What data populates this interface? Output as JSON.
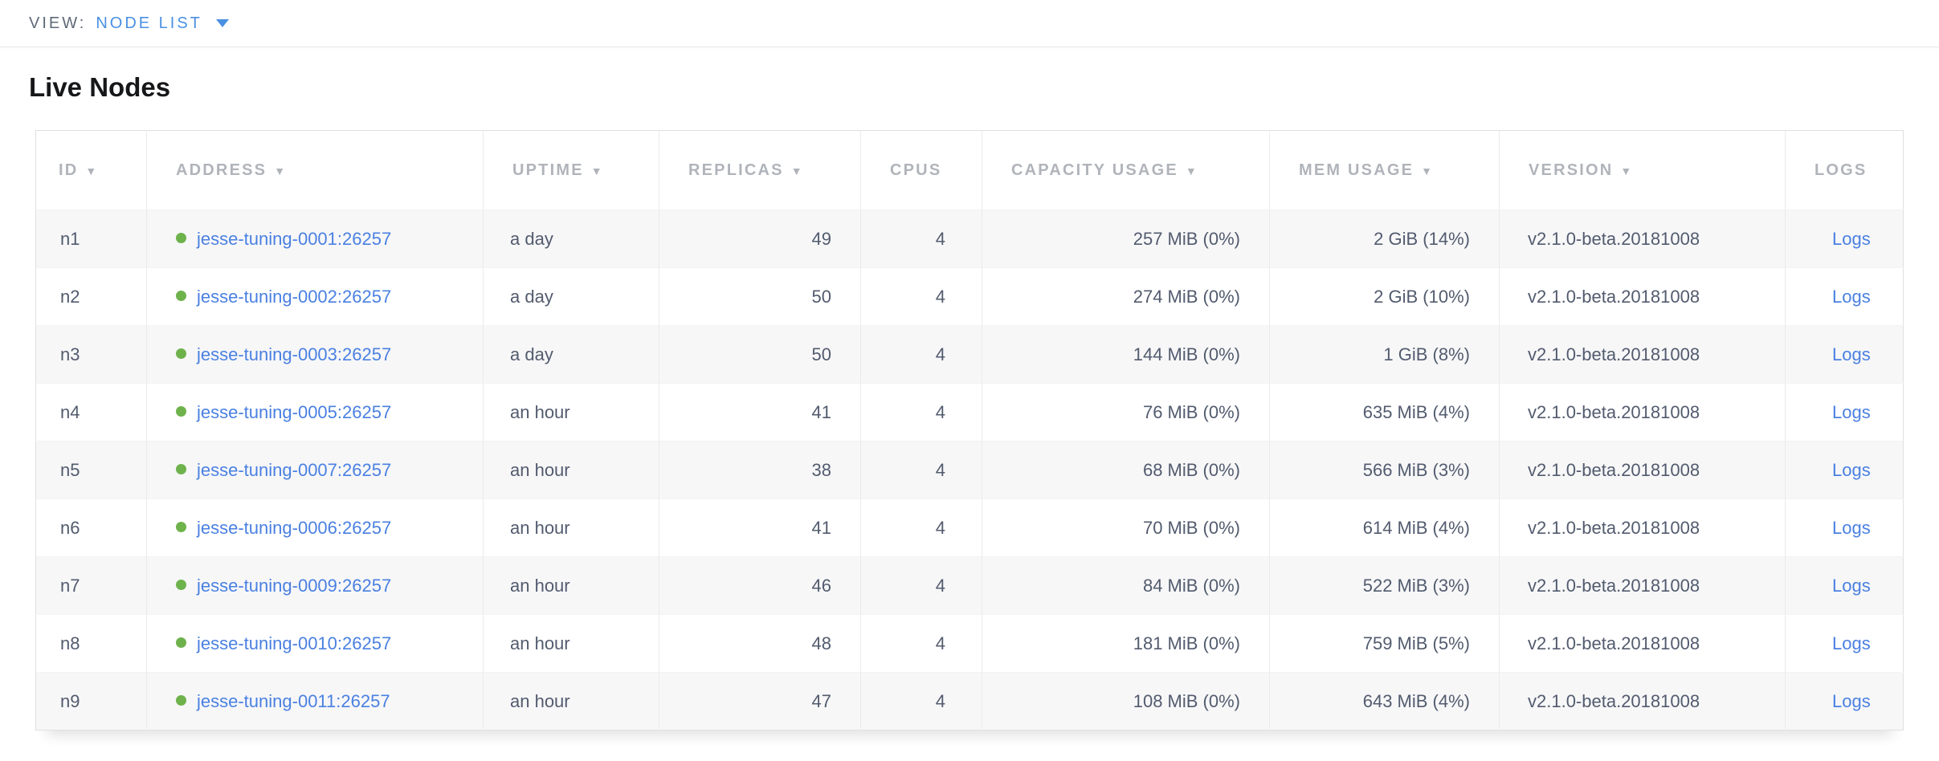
{
  "view_bar": {
    "label": "VIEW:",
    "selected": "NODE LIST"
  },
  "page": {
    "title": "Live Nodes"
  },
  "table": {
    "sort_indicator": "▼",
    "columns": [
      {
        "label": "ID",
        "sortable": true
      },
      {
        "label": "ADDRESS",
        "sortable": true
      },
      {
        "label": "UPTIME",
        "sortable": true
      },
      {
        "label": "REPLICAS",
        "sortable": true
      },
      {
        "label": "CPUS",
        "sortable": false
      },
      {
        "label": "CAPACITY USAGE",
        "sortable": true
      },
      {
        "label": "MEM USAGE",
        "sortable": true
      },
      {
        "label": "VERSION",
        "sortable": true
      },
      {
        "label": "LOGS",
        "sortable": false
      }
    ],
    "rows": [
      {
        "id": "n1",
        "address": "jesse-tuning-0001:26257",
        "status": "live",
        "uptime": "a day",
        "replicas": "49",
        "cpus": "4",
        "capacity": "257 MiB (0%)",
        "mem": "2 GiB (14%)",
        "version": "v2.1.0-beta.20181008",
        "logs": "Logs"
      },
      {
        "id": "n2",
        "address": "jesse-tuning-0002:26257",
        "status": "live",
        "uptime": "a day",
        "replicas": "50",
        "cpus": "4",
        "capacity": "274 MiB (0%)",
        "mem": "2 GiB (10%)",
        "version": "v2.1.0-beta.20181008",
        "logs": "Logs"
      },
      {
        "id": "n3",
        "address": "jesse-tuning-0003:26257",
        "status": "live",
        "uptime": "a day",
        "replicas": "50",
        "cpus": "4",
        "capacity": "144 MiB (0%)",
        "mem": "1 GiB (8%)",
        "version": "v2.1.0-beta.20181008",
        "logs": "Logs"
      },
      {
        "id": "n4",
        "address": "jesse-tuning-0005:26257",
        "status": "live",
        "uptime": "an hour",
        "replicas": "41",
        "cpus": "4",
        "capacity": "76 MiB (0%)",
        "mem": "635 MiB (4%)",
        "version": "v2.1.0-beta.20181008",
        "logs": "Logs"
      },
      {
        "id": "n5",
        "address": "jesse-tuning-0007:26257",
        "status": "live",
        "uptime": "an hour",
        "replicas": "38",
        "cpus": "4",
        "capacity": "68 MiB (0%)",
        "mem": "566 MiB (3%)",
        "version": "v2.1.0-beta.20181008",
        "logs": "Logs"
      },
      {
        "id": "n6",
        "address": "jesse-tuning-0006:26257",
        "status": "live",
        "uptime": "an hour",
        "replicas": "41",
        "cpus": "4",
        "capacity": "70 MiB (0%)",
        "mem": "614 MiB (4%)",
        "version": "v2.1.0-beta.20181008",
        "logs": "Logs"
      },
      {
        "id": "n7",
        "address": "jesse-tuning-0009:26257",
        "status": "live",
        "uptime": "an hour",
        "replicas": "46",
        "cpus": "4",
        "capacity": "84 MiB (0%)",
        "mem": "522 MiB (3%)",
        "version": "v2.1.0-beta.20181008",
        "logs": "Logs"
      },
      {
        "id": "n8",
        "address": "jesse-tuning-0010:26257",
        "status": "live",
        "uptime": "an hour",
        "replicas": "48",
        "cpus": "4",
        "capacity": "181 MiB (0%)",
        "mem": "759 MiB (5%)",
        "version": "v2.1.0-beta.20181008",
        "logs": "Logs"
      },
      {
        "id": "n9",
        "address": "jesse-tuning-0011:26257",
        "status": "live",
        "uptime": "an hour",
        "replicas": "47",
        "cpus": "4",
        "capacity": "108 MiB (0%)",
        "mem": "643 MiB (4%)",
        "version": "v2.1.0-beta.20181008",
        "logs": "Logs"
      }
    ]
  },
  "colors": {
    "accent_blue": "#4a90e2",
    "link_blue": "#4a80e1",
    "live_green": "#6eb24c",
    "header_gray": "#b0b4ba",
    "cell_text": "#525b6e",
    "row_stripe": "#f7f7f8",
    "border": "#e0e0e1"
  }
}
